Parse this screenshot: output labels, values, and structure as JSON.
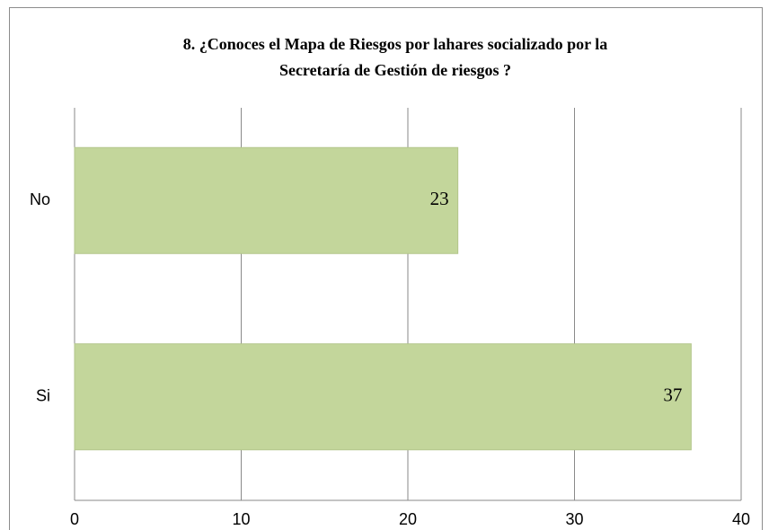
{
  "chart_data": {
    "type": "bar",
    "orientation": "horizontal",
    "title": [
      "8.    ¿Conoces el Mapa de Riesgos por lahares socializado por la",
      "Secretaría de Gestión de riesgos ?"
    ],
    "categories": [
      "No",
      "Si"
    ],
    "values": [
      23,
      37
    ],
    "color": "#c3d69b",
    "xlim": [
      0,
      40
    ],
    "xticks": [
      0,
      10,
      20,
      30,
      40
    ],
    "grid": true
  }
}
